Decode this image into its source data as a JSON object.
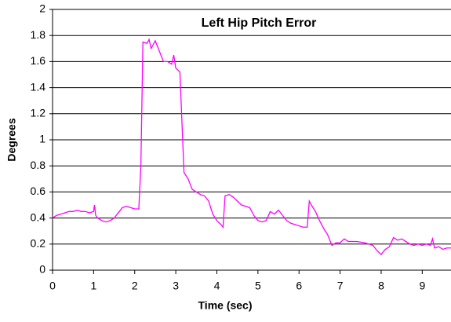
{
  "chart_data": {
    "type": "line",
    "title": "Left Hip Pitch Error",
    "x_label": "Time (sec)",
    "y_label": "Degrees",
    "x": [
      0,
      0.1,
      0.2,
      0.3,
      0.4,
      0.5,
      0.6,
      0.7,
      0.8,
      0.9,
      1.0,
      1.02,
      1.05,
      1.1,
      1.2,
      1.3,
      1.4,
      1.5,
      1.6,
      1.7,
      1.8,
      1.9,
      2.0,
      2.1,
      2.15,
      2.2,
      2.3,
      2.35,
      2.4,
      2.5,
      2.6,
      2.7,
      2.8,
      2.9,
      2.95,
      3.0,
      3.1,
      3.2,
      3.3,
      3.4,
      3.5,
      3.6,
      3.7,
      3.8,
      3.9,
      4.0,
      4.1,
      4.15,
      4.2,
      4.3,
      4.4,
      4.5,
      4.6,
      4.7,
      4.8,
      4.9,
      5.0,
      5.1,
      5.2,
      5.3,
      5.4,
      5.5,
      5.6,
      5.7,
      5.8,
      5.9,
      6.0,
      6.1,
      6.2,
      6.25,
      6.3,
      6.4,
      6.5,
      6.6,
      6.7,
      6.8,
      6.9,
      7.0,
      7.1,
      7.2,
      7.4,
      7.6,
      7.8,
      7.9,
      8.0,
      8.1,
      8.2,
      8.3,
      8.4,
      8.5,
      8.6,
      8.7,
      8.8,
      8.9,
      9.0,
      9.1,
      9.2,
      9.25,
      9.3,
      9.4,
      9.5,
      9.6,
      9.7
    ],
    "series": [
      {
        "name": "Left Hip Pitch Error",
        "color": "#ff00ff",
        "values": [
          0.4,
          0.42,
          0.43,
          0.44,
          0.45,
          0.45,
          0.46,
          0.45,
          0.45,
          0.44,
          0.45,
          0.5,
          0.42,
          0.4,
          0.38,
          0.37,
          0.38,
          0.4,
          0.44,
          0.48,
          0.49,
          0.48,
          0.47,
          0.47,
          0.8,
          1.75,
          1.74,
          1.77,
          1.7,
          1.76,
          1.68,
          1.6,
          1.6,
          1.58,
          1.65,
          1.55,
          1.52,
          0.75,
          0.7,
          0.62,
          0.6,
          0.58,
          0.57,
          0.53,
          0.43,
          0.38,
          0.35,
          0.33,
          0.57,
          0.58,
          0.56,
          0.53,
          0.5,
          0.49,
          0.48,
          0.42,
          0.38,
          0.37,
          0.38,
          0.45,
          0.43,
          0.46,
          0.42,
          0.38,
          0.36,
          0.35,
          0.34,
          0.33,
          0.33,
          0.53,
          0.5,
          0.45,
          0.38,
          0.32,
          0.27,
          0.19,
          0.21,
          0.21,
          0.24,
          0.22,
          0.22,
          0.21,
          0.19,
          0.15,
          0.12,
          0.16,
          0.18,
          0.25,
          0.23,
          0.24,
          0.22,
          0.2,
          0.19,
          0.2,
          0.19,
          0.2,
          0.19,
          0.24,
          0.17,
          0.18,
          0.16,
          0.17,
          0.17
        ]
      }
    ],
    "xlim": [
      0,
      9.7
    ],
    "xticks": [
      0,
      1,
      2,
      3,
      4,
      5,
      6,
      7,
      8,
      9
    ],
    "ylim": [
      0,
      2
    ],
    "yticks": [
      0,
      0.2,
      0.4,
      0.6,
      0.8,
      1,
      1.2,
      1.4,
      1.6,
      1.8,
      2
    ],
    "grid": true
  }
}
